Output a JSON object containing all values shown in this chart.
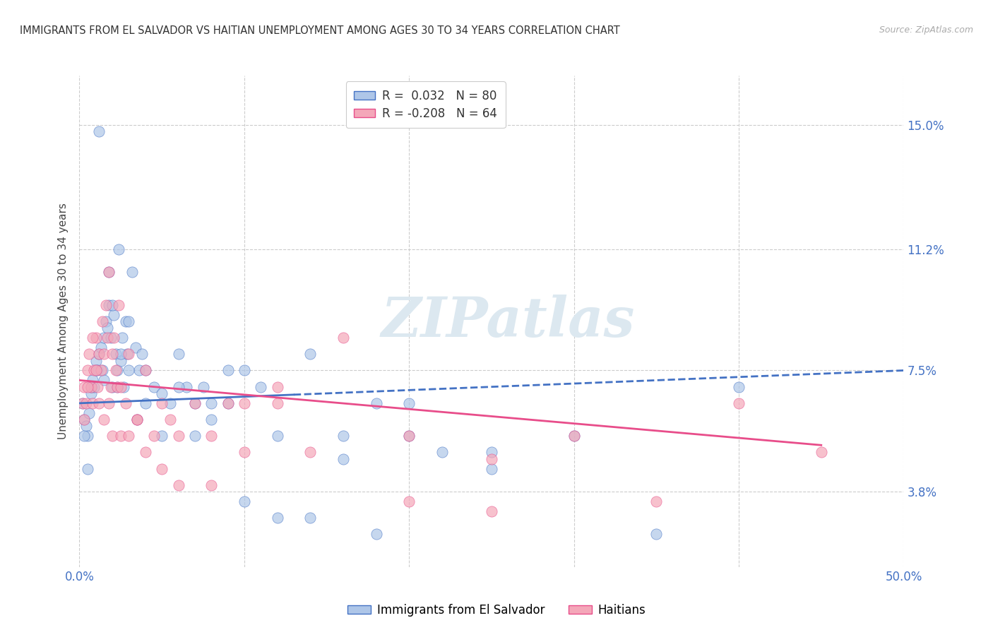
{
  "title": "IMMIGRANTS FROM EL SALVADOR VS HAITIAN UNEMPLOYMENT AMONG AGES 30 TO 34 YEARS CORRELATION CHART",
  "source": "Source: ZipAtlas.com",
  "ylabel": "Unemployment Among Ages 30 to 34 years",
  "ytick_values": [
    3.8,
    7.5,
    11.2,
    15.0
  ],
  "xmin": 0.0,
  "xmax": 50.0,
  "ymin": 1.5,
  "ymax": 16.5,
  "r_salvador": 0.032,
  "n_salvador": 80,
  "r_haitian": -0.208,
  "n_haitian": 64,
  "legend_labels": [
    "Immigrants from El Salvador",
    "Haitians"
  ],
  "color_salvador": "#aec6e8",
  "color_haitian": "#f4a7b9",
  "color_salvador_line": "#4472c4",
  "color_haitian_line": "#e84d8a",
  "watermark": "ZIPatlas",
  "watermark_color": "#dce8f0",
  "salvador_x": [
    0.2,
    0.3,
    0.4,
    0.5,
    0.6,
    0.7,
    0.8,
    0.9,
    1.0,
    1.1,
    1.2,
    1.3,
    1.4,
    1.5,
    1.6,
    1.7,
    1.8,
    1.9,
    2.0,
    2.1,
    2.2,
    2.3,
    2.4,
    2.5,
    2.6,
    2.7,
    2.8,
    2.9,
    3.0,
    3.2,
    3.4,
    3.6,
    3.8,
    4.0,
    4.5,
    5.0,
    5.5,
    6.0,
    6.5,
    7.0,
    7.5,
    8.0,
    9.0,
    10.0,
    11.0,
    12.0,
    14.0,
    16.0,
    18.0,
    20.0,
    22.0,
    25.0,
    0.3,
    0.5,
    0.7,
    1.0,
    1.2,
    1.5,
    1.8,
    2.0,
    2.3,
    2.5,
    3.0,
    3.5,
    4.0,
    5.0,
    6.0,
    7.0,
    8.0,
    9.0,
    10.0,
    12.0,
    14.0,
    16.0,
    18.0,
    20.0,
    25.0,
    30.0,
    35.0,
    40.0
  ],
  "salvador_y": [
    6.5,
    6.0,
    5.8,
    5.5,
    6.2,
    6.8,
    7.2,
    7.0,
    7.8,
    7.5,
    8.0,
    8.2,
    7.5,
    8.5,
    9.0,
    8.8,
    9.5,
    8.5,
    7.0,
    9.2,
    8.0,
    7.5,
    11.2,
    7.8,
    8.5,
    7.0,
    9.0,
    8.0,
    9.0,
    10.5,
    8.2,
    7.5,
    8.0,
    6.5,
    7.0,
    6.8,
    6.5,
    8.0,
    7.0,
    6.5,
    7.0,
    6.0,
    6.5,
    7.5,
    7.0,
    5.5,
    8.0,
    4.8,
    6.5,
    5.5,
    5.0,
    4.5,
    5.5,
    4.5,
    7.0,
    7.5,
    14.8,
    7.2,
    10.5,
    9.5,
    7.0,
    8.0,
    7.5,
    6.0,
    7.5,
    5.5,
    7.0,
    5.5,
    6.5,
    7.5,
    3.5,
    3.0,
    3.0,
    5.5,
    2.5,
    6.5,
    5.0,
    5.5,
    2.5,
    7.0
  ],
  "haitian_x": [
    0.2,
    0.3,
    0.4,
    0.5,
    0.6,
    0.7,
    0.8,
    0.9,
    1.0,
    1.1,
    1.2,
    1.3,
    1.4,
    1.5,
    1.6,
    1.7,
    1.8,
    1.9,
    2.0,
    2.1,
    2.2,
    2.3,
    2.4,
    2.5,
    2.8,
    3.0,
    3.5,
    4.0,
    4.5,
    5.0,
    5.5,
    6.0,
    7.0,
    8.0,
    9.0,
    10.0,
    12.0,
    14.0,
    16.0,
    20.0,
    25.0,
    30.0,
    35.0,
    40.0,
    45.0,
    0.3,
    0.5,
    0.8,
    1.0,
    1.2,
    1.5,
    1.8,
    2.0,
    2.5,
    3.0,
    3.5,
    4.0,
    5.0,
    6.0,
    8.0,
    10.0,
    12.0,
    20.0,
    25.0
  ],
  "haitian_y": [
    6.5,
    7.0,
    6.5,
    7.5,
    8.0,
    7.0,
    6.5,
    7.5,
    8.5,
    7.0,
    8.0,
    7.5,
    9.0,
    8.0,
    9.5,
    8.5,
    10.5,
    7.0,
    8.0,
    8.5,
    7.5,
    7.0,
    9.5,
    7.0,
    6.5,
    8.0,
    6.0,
    7.5,
    5.5,
    6.5,
    6.0,
    5.5,
    6.5,
    5.5,
    6.5,
    5.0,
    7.0,
    5.0,
    8.5,
    5.5,
    4.8,
    5.5,
    3.5,
    6.5,
    5.0,
    6.0,
    7.0,
    8.5,
    7.5,
    6.5,
    6.0,
    6.5,
    5.5,
    5.5,
    5.5,
    6.0,
    5.0,
    4.5,
    4.0,
    4.0,
    6.5,
    6.5,
    3.5,
    3.2
  ]
}
